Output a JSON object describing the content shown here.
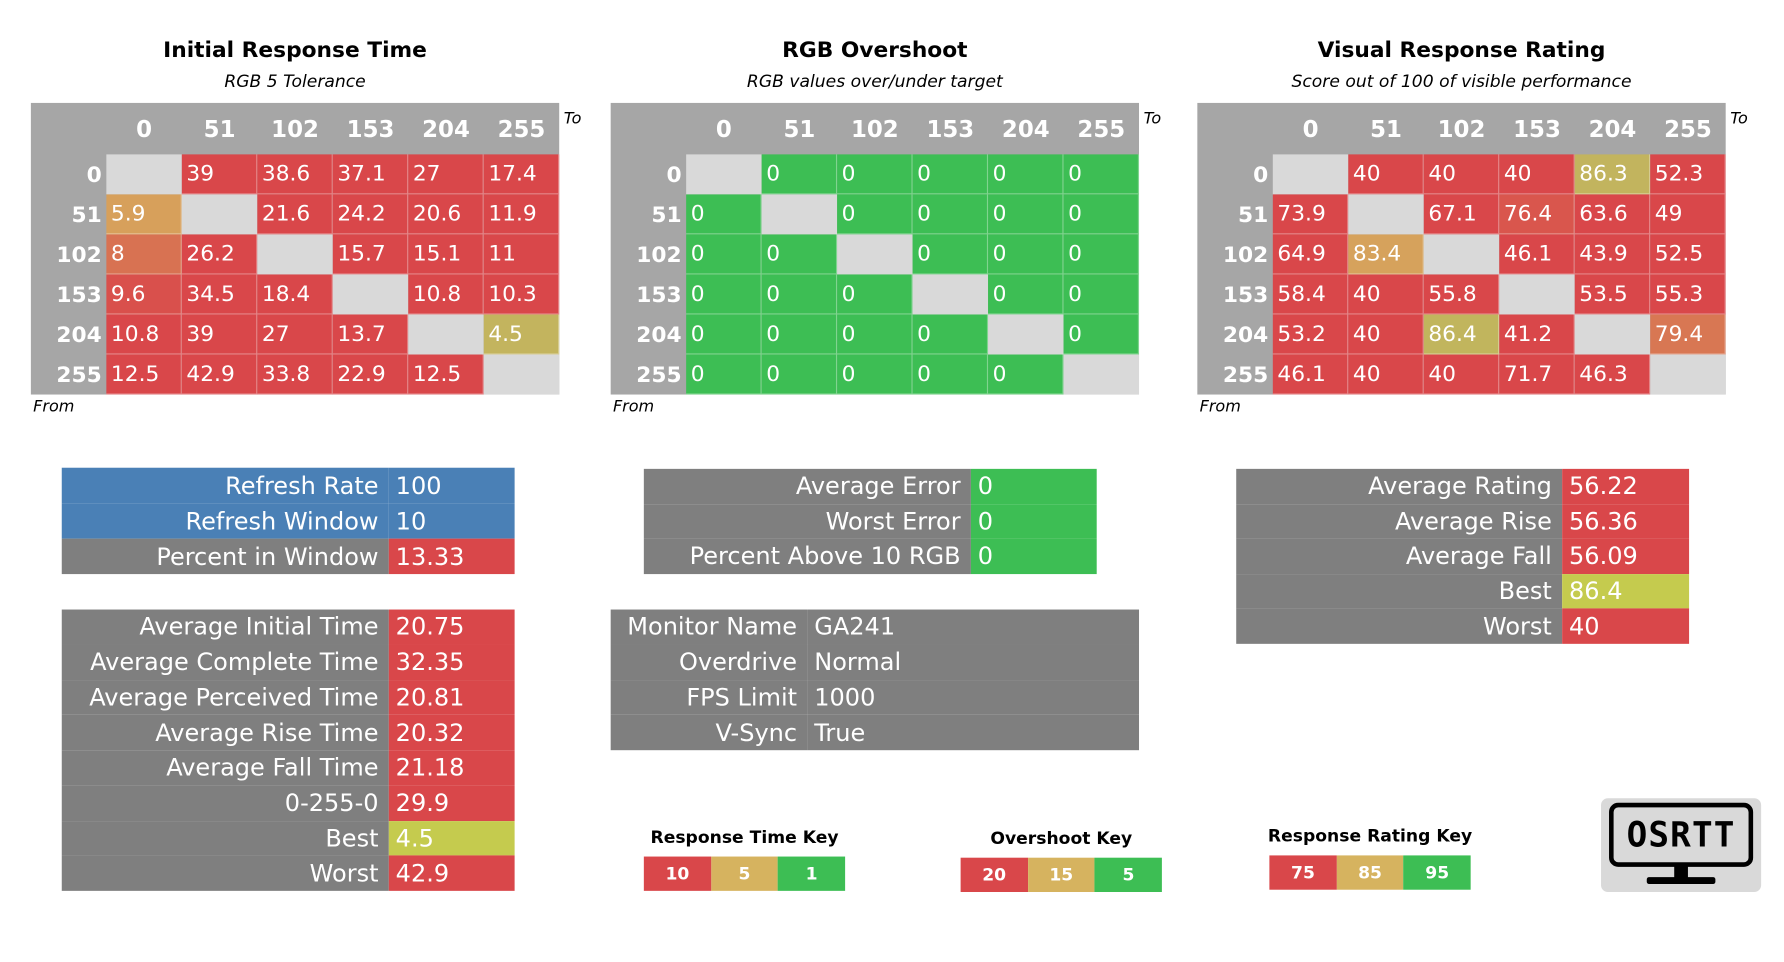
{
  "levels": [
    0,
    51,
    102,
    153,
    204,
    255
  ],
  "axis_to": "To",
  "axis_from": "From",
  "matrices": [
    {
      "title": "Initial Response Time",
      "subtitle": "RGB 5 Tolerance",
      "rows": [
        [
          null,
          39,
          38.6,
          37.1,
          27,
          17.4
        ],
        [
          5.9,
          null,
          21.6,
          24.2,
          20.6,
          11.9
        ],
        [
          8,
          26.2,
          null,
          15.7,
          15.1,
          11
        ],
        [
          9.6,
          34.5,
          18.4,
          null,
          10.8,
          10.3
        ],
        [
          10.8,
          39,
          27,
          13.7,
          null,
          4.5
        ],
        [
          12.5,
          42.9,
          33.8,
          22.9,
          12.5,
          null
        ]
      ]
    },
    {
      "title": "RGB Overshoot",
      "subtitle": "RGB values over/under target",
      "rows": [
        [
          null,
          0,
          0,
          0,
          0,
          0
        ],
        [
          0,
          null,
          0,
          0,
          0,
          0
        ],
        [
          0,
          0,
          null,
          0,
          0,
          0
        ],
        [
          0,
          0,
          0,
          null,
          0,
          0
        ],
        [
          0,
          0,
          0,
          0,
          null,
          0
        ],
        [
          0,
          0,
          0,
          0,
          0,
          null
        ]
      ]
    },
    {
      "title": "Visual Response Rating",
      "subtitle": "Score out of 100 of visible performance",
      "rows": [
        [
          null,
          40,
          40,
          40,
          86.3,
          52.3
        ],
        [
          73.9,
          null,
          67.1,
          76.4,
          63.6,
          49
        ],
        [
          64.9,
          83.4,
          null,
          46.1,
          43.9,
          52.5
        ],
        [
          58.4,
          40,
          55.8,
          null,
          53.5,
          55.3
        ],
        [
          53.2,
          40,
          86.4,
          41.2,
          null,
          79.4
        ],
        [
          46.1,
          40,
          40,
          71.7,
          46.3,
          null
        ]
      ]
    }
  ],
  "panels": [
    {
      "fill": "#7f7f7f",
      "rows": [
        {
          "label": "Refresh Rate",
          "value": 100,
          "fill": "#4a80b6"
        },
        {
          "label": "Refresh Window",
          "value": 10,
          "fill": "#4a80b6"
        },
        {
          "label": "Percent in Window",
          "value": 13.33,
          "value_fill": "#d9474a"
        }
      ]
    },
    {
      "fill": "#7f7f7f",
      "rows": [
        {
          "label": "Average Initial Time",
          "value": 20.75,
          "value_fill": "#d9474a"
        },
        {
          "label": "Average Complete Time",
          "value": 32.35,
          "value_fill": "#d9474a"
        },
        {
          "label": "Average Perceived Time",
          "value": 20.81,
          "value_fill": "#d9474a"
        },
        {
          "label": "Average Rise Time",
          "value": 20.32,
          "value_fill": "#d9474a"
        },
        {
          "label": "Average Fall Time",
          "value": 21.18,
          "value_fill": "#d9474a"
        },
        {
          "label": "0-255-0",
          "value": 29.9,
          "value_fill": "#d9474a"
        },
        {
          "label": "Best",
          "value": 4.5,
          "value_fill": "#c5cb4e"
        },
        {
          "label": "Worst",
          "value": 42.9,
          "value_fill": "#d9474a"
        }
      ]
    },
    {
      "fill": "#7f7f7f",
      "rows": [
        {
          "label": "Average Error",
          "value": 0,
          "value_fill": "#3dbe54"
        },
        {
          "label": "Worst Error",
          "value": 0,
          "value_fill": "#3dbe54"
        },
        {
          "label": "Percent Above 10 RGB",
          "value": 0,
          "value_fill": "#3dbe54"
        }
      ]
    },
    {
      "fill": "#7f7f7f",
      "rows": [
        {
          "label": "Monitor Name",
          "value": "GA241"
        },
        {
          "label": "Overdrive",
          "value": "Normal"
        },
        {
          "label": "FPS Limit",
          "value": 1000
        },
        {
          "label": "V-Sync",
          "value": "True"
        }
      ]
    },
    {
      "fill": "#7f7f7f",
      "rows": [
        {
          "label": "Average Rating",
          "value": 56.22,
          "value_fill": "#d9474a"
        },
        {
          "label": "Average Rise",
          "value": 56.36,
          "value_fill": "#d9474a"
        },
        {
          "label": "Average Fall",
          "value": 56.09,
          "value_fill": "#d9474a"
        },
        {
          "label": "Best",
          "value": 86.4,
          "value_fill": "#c5cb4e"
        },
        {
          "label": "Worst",
          "value": 40,
          "value_fill": "#d9474a"
        }
      ]
    }
  ],
  "keys": [
    {
      "title": "Response Time Key",
      "steps": [
        {
          "value": 10,
          "color": "#d9474a"
        },
        {
          "value": 5,
          "color": "#d6b35f"
        },
        {
          "value": 1,
          "color": "#3dbe54"
        }
      ]
    },
    {
      "title": "Overshoot Key",
      "steps": [
        {
          "value": 20,
          "color": "#d9474a"
        },
        {
          "value": 15,
          "color": "#d6b35f"
        },
        {
          "value": 5,
          "color": "#3dbe54"
        }
      ]
    },
    {
      "title": "Response Rating Key",
      "steps": [
        {
          "value": 75,
          "color": "#d9474a"
        },
        {
          "value": 85,
          "color": "#d6b35f"
        },
        {
          "value": 95,
          "color": "#3dbe54"
        }
      ]
    }
  ],
  "logo": "OSRTT"
}
